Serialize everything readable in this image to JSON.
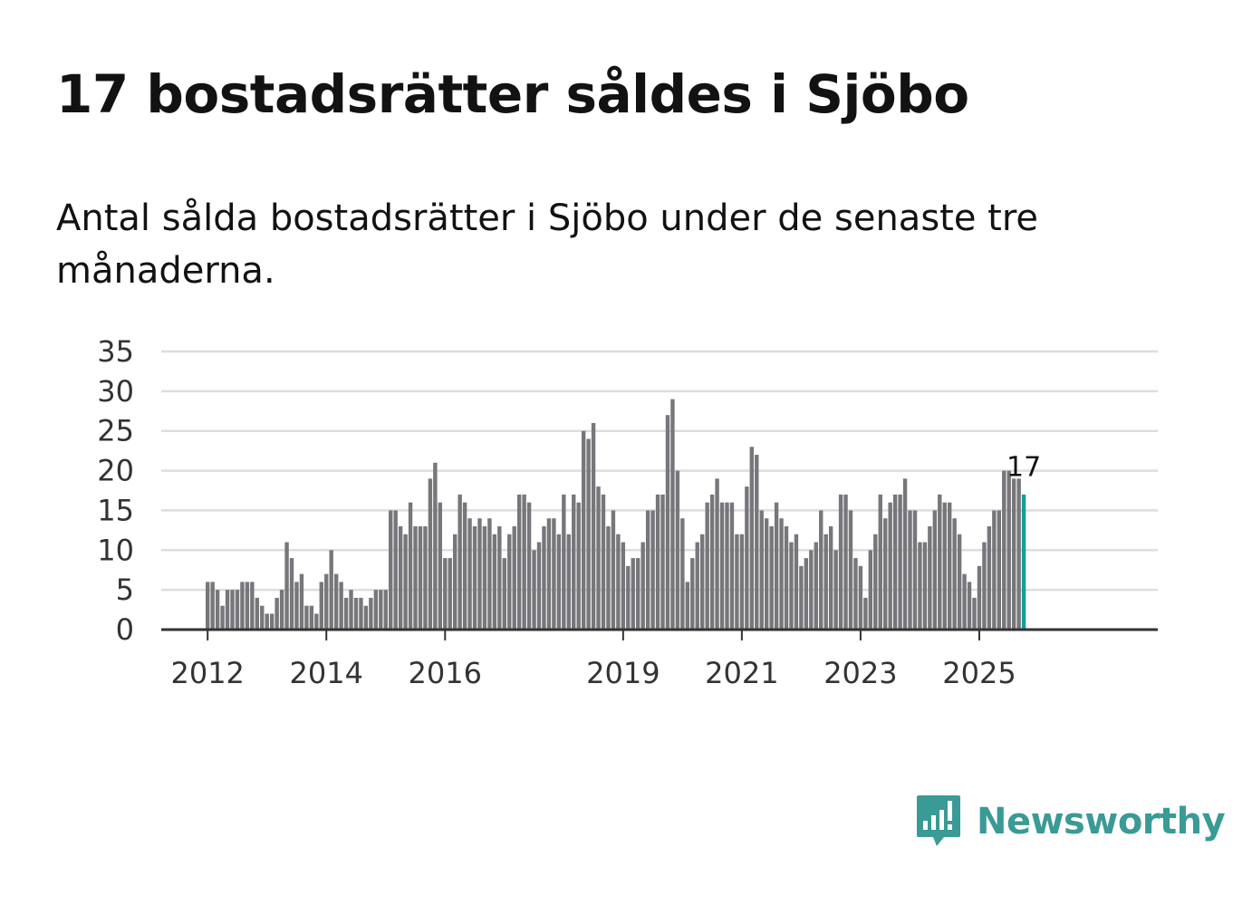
{
  "title": "17 bostadsrätter såldes i Sjöbo",
  "subtitle": "Antal sålda bostadsrätter i Sjöbo under de senaste tre månaderna.",
  "brand": {
    "name": "Newsworthy",
    "color": "#3a9a95",
    "icon": "newsworthy-logo-icon"
  },
  "chart_data": {
    "type": "bar",
    "title": "17 bostadsrätter såldes i Sjöbo",
    "xlabel": "",
    "ylabel": "",
    "ylim": [
      0,
      35
    ],
    "y_ticks": [
      "0",
      "5",
      "10",
      "15",
      "20",
      "25",
      "30",
      "35"
    ],
    "x_ticks": [
      {
        "label": "2012",
        "index": 0
      },
      {
        "label": "2014",
        "index": 24
      },
      {
        "label": "2016",
        "index": 48
      },
      {
        "label": "2019",
        "index": 84
      },
      {
        "label": "2021",
        "index": 108
      },
      {
        "label": "2023",
        "index": 132
      },
      {
        "label": "2025",
        "index": 156
      }
    ],
    "start": "2012-01",
    "frequency": "monthly",
    "highlight_label": "17",
    "colors": {
      "bar": "#77767b",
      "highlight": "#1a9c96",
      "grid": "#dddddd",
      "axis": "#333333"
    },
    "values": [
      6,
      6,
      5,
      3,
      5,
      5,
      5,
      6,
      6,
      6,
      4,
      3,
      2,
      2,
      4,
      5,
      11,
      9,
      6,
      7,
      3,
      3,
      2,
      6,
      7,
      10,
      7,
      6,
      4,
      5,
      4,
      4,
      3,
      4,
      5,
      5,
      5,
      15,
      15,
      13,
      12,
      16,
      13,
      13,
      13,
      19,
      21,
      16,
      9,
      9,
      12,
      17,
      16,
      14,
      13,
      14,
      13,
      14,
      12,
      13,
      9,
      12,
      13,
      17,
      17,
      16,
      10,
      11,
      13,
      14,
      14,
      12,
      17,
      12,
      17,
      16,
      25,
      24,
      26,
      18,
      17,
      13,
      15,
      12,
      11,
      8,
      9,
      9,
      11,
      15,
      15,
      17,
      17,
      27,
      29,
      20,
      14,
      6,
      9,
      11,
      12,
      16,
      17,
      19,
      16,
      16,
      16,
      12,
      12,
      18,
      23,
      22,
      15,
      14,
      13,
      16,
      14,
      13,
      11,
      12,
      8,
      9,
      10,
      11,
      15,
      12,
      13,
      10,
      17,
      17,
      15,
      9,
      8,
      4,
      10,
      12,
      17,
      14,
      16,
      17,
      17,
      19,
      15,
      15,
      11,
      11,
      13,
      15,
      17,
      16,
      16,
      14,
      12,
      7,
      6,
      4,
      8,
      11,
      13,
      15,
      15,
      20,
      20,
      19,
      19,
      17
    ]
  }
}
